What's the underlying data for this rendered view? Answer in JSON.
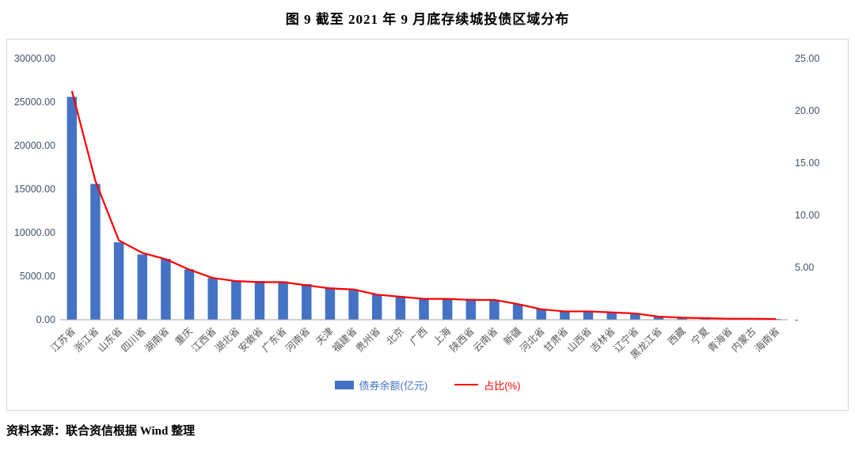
{
  "title": "图 9  截至 2021 年 9 月底存续城投债区域分布",
  "source_note": "资料来源：联合资信根据 Wind 整理",
  "chart_data": {
    "type": "bar+line",
    "title": "图 9  截至 2021 年 9 月底存续城投债区域分布",
    "categories": [
      "江苏省",
      "浙江省",
      "山东省",
      "四川省",
      "湖南省",
      "重庆",
      "江西省",
      "湖北省",
      "安徽省",
      "广东省",
      "河南省",
      "天津",
      "福建省",
      "贵州省",
      "北京",
      "广西",
      "上海",
      "陕西省",
      "云南省",
      "新疆",
      "河北省",
      "甘肃省",
      "山西省",
      "吉林省",
      "辽宁省",
      "黑龙江省",
      "西藏",
      "宁夏",
      "青海省",
      "内蒙古",
      "海南省"
    ],
    "series": [
      {
        "name": "债券余额(亿元)",
        "type": "bar",
        "axis": "left",
        "color": "#4472C4",
        "values": [
          25600,
          15600,
          8900,
          7500,
          7000,
          5800,
          4800,
          4500,
          4450,
          4400,
          4100,
          3700,
          3500,
          2900,
          2650,
          2500,
          2450,
          2400,
          2300,
          1800,
          1250,
          950,
          950,
          800,
          750,
          320,
          280,
          180,
          120,
          110,
          90
        ]
      },
      {
        "name": "占比(%)",
        "type": "line",
        "axis": "right",
        "color": "#FF0000",
        "values": [
          21.9,
          13.3,
          7.6,
          6.4,
          5.8,
          4.8,
          4.0,
          3.7,
          3.6,
          3.6,
          3.3,
          3.0,
          2.9,
          2.4,
          2.2,
          2.0,
          2.0,
          1.9,
          1.9,
          1.5,
          1.0,
          0.8,
          0.8,
          0.7,
          0.6,
          0.3,
          0.2,
          0.15,
          0.1,
          0.1,
          0.07
        ]
      }
    ],
    "left_axis": {
      "min": 0,
      "max": 30000,
      "step": 5000,
      "tick_values": [
        30000,
        25000,
        20000,
        15000,
        10000,
        5000,
        0
      ],
      "tick_labels": [
        "30000.00",
        "25000.00",
        "20000.00",
        "15000.00",
        "10000.00",
        "5000.00",
        "0.00"
      ]
    },
    "right_axis": {
      "min": 0,
      "max": 25,
      "step": 5,
      "tick_values": [
        25,
        20,
        15,
        10,
        5,
        0
      ],
      "tick_labels": [
        "25.00",
        "20.00",
        "15.00",
        "10.00",
        "5.00",
        "-"
      ]
    },
    "grid": "off",
    "legend_position": "bottom",
    "axis_label_color": "#44546A",
    "category_label_color": "#595959"
  }
}
